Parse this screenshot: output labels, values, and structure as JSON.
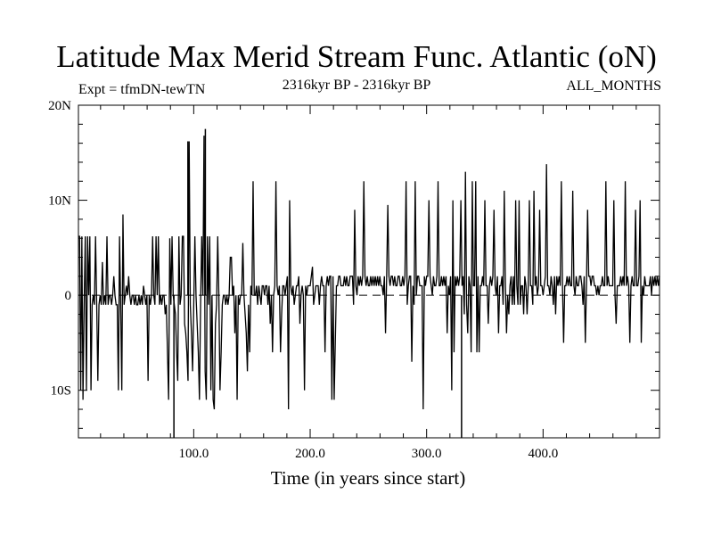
{
  "title": "Latitude Max Merid Stream Func. Atlantic (oN)",
  "subtitle_left": "Expt = tfmDN-tewTN",
  "subtitle_center": "2316kyr BP - 2316kyr BP",
  "subtitle_right": "ALL_MONTHS",
  "xlabel": "Time (in years since start)",
  "chart_data": {
    "type": "line",
    "title": "Latitude Max Merid Stream Func. Atlantic (oN)",
    "xlabel": "Time (in years since start)",
    "ylabel": "",
    "xlim": [
      1,
      500
    ],
    "ylim": [
      -15,
      20
    ],
    "x_ticks": [
      {
        "value": 100,
        "label": "100.0"
      },
      {
        "value": 200,
        "label": "200.0"
      },
      {
        "value": 300,
        "label": "300.0"
      },
      {
        "value": 400,
        "label": "400.0"
      }
    ],
    "y_ticks": [
      {
        "value": 20,
        "label": "20N"
      },
      {
        "value": 10,
        "label": "10N"
      },
      {
        "value": 0,
        "label": "0"
      },
      {
        "value": -10,
        "label": "10S"
      }
    ],
    "reference_line": {
      "value": 0,
      "style": "dashed"
    },
    "series": [
      {
        "values": [
          6.2,
          6.2,
          -10,
          6.2,
          -11,
          -1,
          6.2,
          -10,
          6.2,
          0,
          6.2,
          -10,
          -1,
          0,
          -1,
          6.2,
          -1,
          -9,
          -1,
          0,
          -1,
          3.5,
          -1,
          0,
          -1,
          6.2,
          -1,
          0,
          0,
          -1,
          0,
          2,
          0,
          -1,
          -1,
          -10,
          6.2,
          -1,
          -10,
          8.5,
          -1,
          0,
          1,
          0,
          2,
          0,
          -1,
          0,
          0,
          -1,
          0,
          -1,
          -1,
          0,
          -1,
          0,
          -1,
          1,
          0,
          -1,
          0,
          -9,
          0,
          -1,
          0,
          6.2,
          0,
          -1,
          6.2,
          0,
          6.2,
          -1,
          0,
          -1,
          0,
          0,
          -2,
          -1,
          -6,
          -11,
          6,
          -1,
          6.2,
          0,
          -1,
          -2,
          -6,
          -9,
          6.2,
          -1,
          0,
          6.2,
          6.2,
          -3,
          -4,
          -6,
          -9,
          16.2,
          -1,
          -4,
          -8,
          -1,
          6.2,
          0,
          -3,
          -6,
          -11,
          -1,
          6.2,
          0,
          16.8,
          -8,
          -11,
          6.2,
          -1,
          6.2,
          -10,
          0,
          -11,
          -12,
          -3,
          -1,
          6.2,
          0,
          -10,
          -6,
          -1,
          0,
          0,
          -1,
          0,
          -1,
          0,
          4,
          4,
          0,
          1,
          -4,
          0,
          -11,
          0,
          -1,
          0,
          0,
          5.5,
          0,
          -2,
          -4,
          -8,
          -1,
          -6,
          1,
          0,
          12,
          0,
          0,
          1,
          -1,
          1,
          0,
          -1,
          1,
          1,
          0,
          1,
          1,
          -1,
          1,
          -3,
          0,
          -6,
          0,
          1,
          12,
          1,
          0,
          1,
          -6,
          -2,
          1,
          1,
          0,
          1,
          2,
          -12,
          10,
          1,
          0,
          1,
          -1,
          0,
          1,
          1,
          2,
          -3,
          0,
          1,
          0,
          -10,
          1,
          0,
          1,
          1,
          1,
          2,
          3,
          -1,
          0,
          1,
          1,
          1,
          -1,
          1,
          2,
          1,
          1,
          -6,
          1,
          2,
          1,
          2,
          2,
          -11,
          2,
          -11,
          -5,
          1,
          1,
          2,
          2,
          1,
          1,
          1,
          2,
          1,
          2,
          1,
          1,
          2,
          2,
          2,
          -1,
          9,
          1,
          0,
          2,
          1,
          2,
          1,
          2,
          12,
          2,
          1,
          2,
          1,
          1,
          2,
          1,
          2,
          1,
          2,
          1,
          2,
          1,
          2,
          1,
          1,
          0,
          2,
          -4,
          2,
          9.5,
          2,
          1,
          2,
          2,
          1,
          2,
          1,
          1,
          2,
          2,
          1,
          1,
          2,
          1,
          2,
          12,
          -1,
          1,
          2,
          2,
          -7,
          1,
          -1,
          12,
          0,
          2,
          2,
          1,
          1,
          1,
          -12,
          2,
          1,
          2,
          2,
          10,
          2,
          1,
          0,
          2,
          1,
          1,
          2,
          12,
          1,
          1,
          2,
          1,
          2,
          1,
          2,
          -4,
          1,
          0,
          2,
          -10,
          10,
          -6,
          2,
          1,
          2,
          1,
          2,
          10,
          1,
          2,
          -2,
          13,
          -1,
          -4,
          2,
          1,
          -6,
          12,
          1,
          1,
          12,
          -6,
          2,
          -6,
          1,
          1,
          2,
          1,
          10,
          1,
          1,
          -3,
          1,
          2,
          1,
          2,
          9,
          1,
          0,
          2,
          -4,
          1,
          1,
          2,
          -1,
          11,
          1,
          -4,
          0,
          -2,
          1,
          2,
          -1,
          2,
          -1,
          10,
          1,
          -1,
          10,
          -1,
          1,
          1,
          -2,
          2,
          1,
          -2,
          1,
          10,
          1,
          1,
          -1,
          11,
          1,
          2,
          0,
          1,
          9,
          1,
          1,
          0,
          1,
          2,
          13.8,
          1,
          1,
          0,
          2,
          1,
          -1,
          2,
          -2,
          2,
          1,
          2,
          1,
          12,
          1,
          -5,
          1,
          1,
          2,
          1,
          2,
          1,
          1,
          11,
          1,
          0,
          2,
          1,
          1,
          2,
          2,
          1,
          -1,
          2,
          -5,
          1,
          9,
          2,
          2,
          1,
          2,
          2,
          1,
          1,
          0,
          1,
          0,
          1,
          1,
          2,
          1,
          1,
          12,
          1,
          2,
          1,
          1,
          1,
          1,
          10,
          0,
          -3,
          1,
          1,
          1,
          2,
          1,
          2,
          1,
          12,
          1,
          2,
          1,
          -5,
          1,
          2,
          1,
          1,
          9,
          1,
          1,
          2,
          10,
          -5,
          1,
          0,
          2,
          1,
          1,
          1,
          1,
          2,
          0,
          2,
          1,
          2,
          1,
          2,
          1,
          2
        ]
      }
    ],
    "spikes": [
      {
        "x": 83,
        "value": -15
      },
      {
        "x": 95,
        "value": 16.2
      },
      {
        "x": 110,
        "value": 17.5
      },
      {
        "x": 330,
        "value": -15
      }
    ]
  }
}
